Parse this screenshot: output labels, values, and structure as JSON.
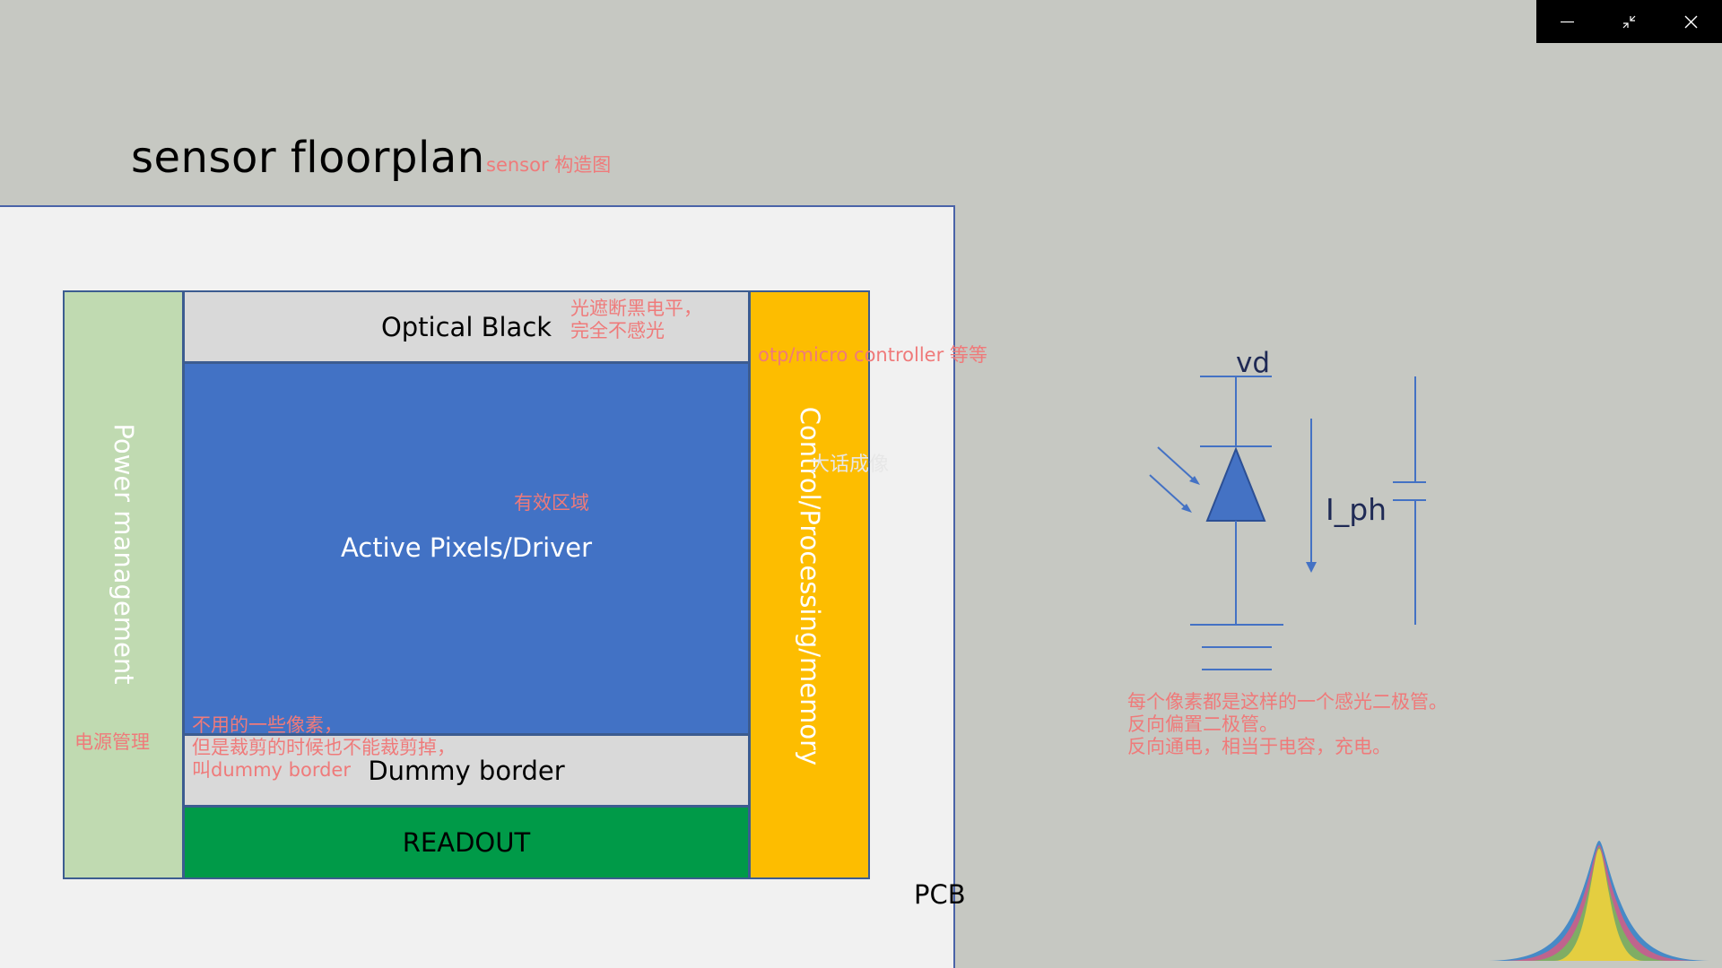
{
  "title": "sensor floorplan",
  "title_note": "sensor 构造图",
  "pcb_label": "PCB",
  "blocks": {
    "optical_black": "Optical Black",
    "active_pixels": "Active Pixels/Driver",
    "dummy_border": "Dummy border",
    "readout": "READOUT",
    "power_management": "Power management",
    "control": "Control/Processing/memory"
  },
  "notes": {
    "optical_black": [
      "光遮断黑电平，",
      "完全不感光"
    ],
    "control": "otp/micro controller 等等",
    "active": "有效区域",
    "power": "电源管理",
    "dummy": [
      "不用的一些像素，",
      "但是裁剪的时候也不能裁剪掉，",
      "叫dummy border"
    ],
    "pixel": [
      "每个像素都是这样的一个感光二极管。",
      "反向偏置二极管。",
      "反向通电，相当于电容，充电。"
    ]
  },
  "watermark": "大话成像",
  "circuit": {
    "vd_label": "vd",
    "current_label": "I_ph"
  },
  "colors": {
    "background": "#c6c8c2",
    "pcb": "#f1f1f1",
    "power": "#c0dab1",
    "optical": "#d9d9d9",
    "active": "#4272c5",
    "readout": "#009a48",
    "control": "#fdbd00",
    "note": "#ef7a7a"
  },
  "window_controls": [
    "minimize-icon",
    "restore-icon",
    "close-icon"
  ]
}
